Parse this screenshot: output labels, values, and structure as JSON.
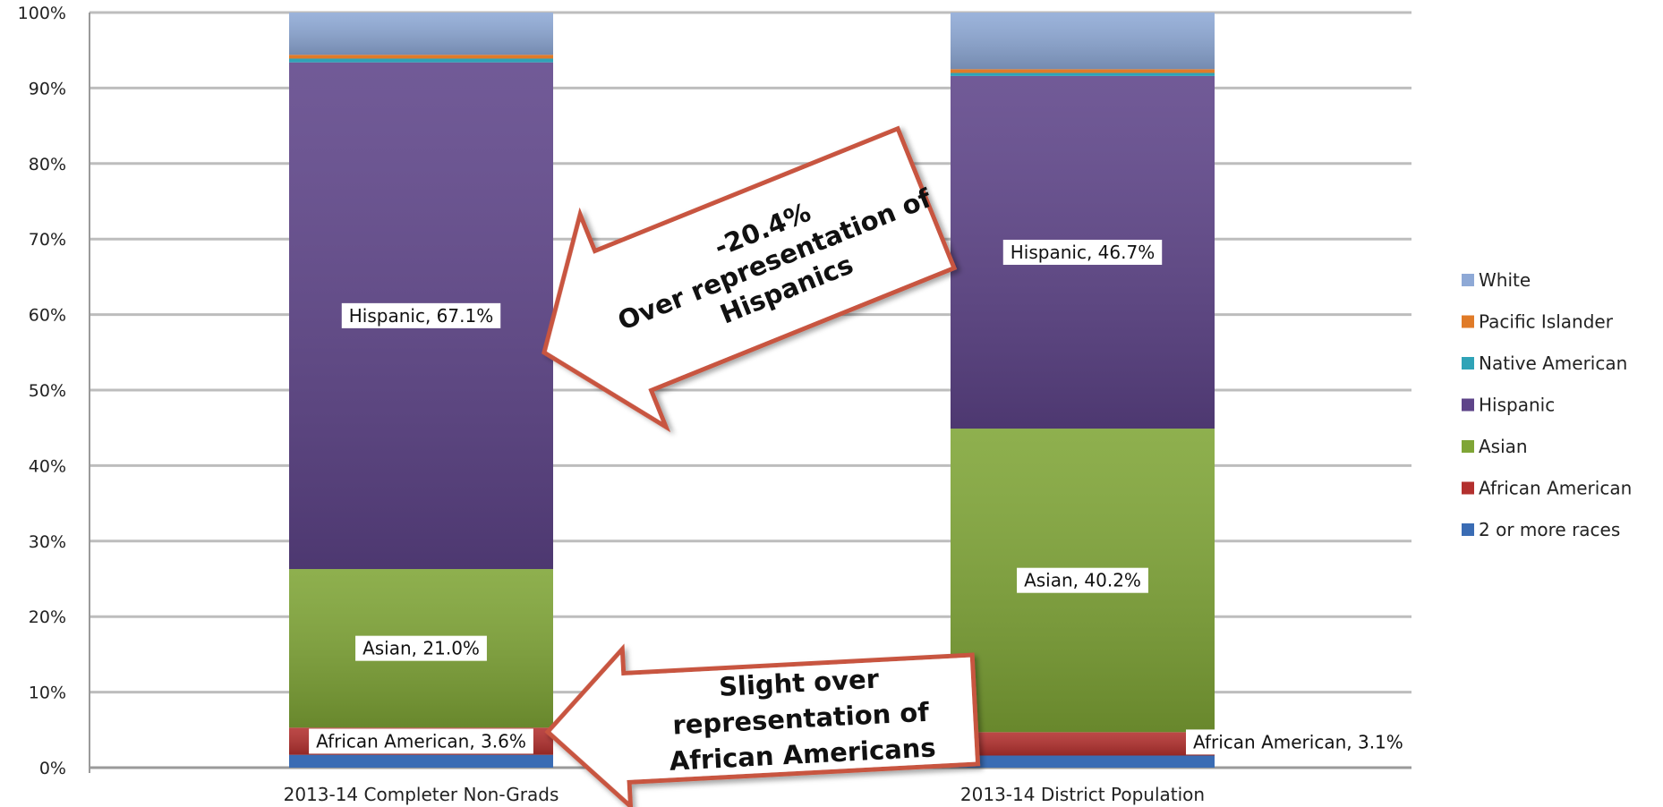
{
  "chart_data": {
    "type": "bar",
    "stacked": true,
    "categories": [
      "2013-14 Completer Non-Grads",
      "2013-14 District Population"
    ],
    "yticks": [
      "0%",
      "10%",
      "20%",
      "30%",
      "40%",
      "50%",
      "60%",
      "70%",
      "80%",
      "90%",
      "100%"
    ],
    "ylim": [
      0,
      100
    ],
    "grid": true,
    "legend_position": "right",
    "series": [
      {
        "name": "2 or more races",
        "color": "#3a6cb4",
        "values": [
          1.7,
          1.6
        ]
      },
      {
        "name": "African American",
        "color": "#b3302e",
        "values": [
          3.6,
          3.1
        ]
      },
      {
        "name": "Asian",
        "color": "#7fa536",
        "values": [
          21.0,
          40.2
        ]
      },
      {
        "name": "Hispanic",
        "color": "#5e4489",
        "values": [
          67.1,
          46.7
        ]
      },
      {
        "name": "Native American",
        "color": "#2fa3b7",
        "values": [
          0.5,
          0.4
        ]
      },
      {
        "name": "Pacific Islander",
        "color": "#e07b28",
        "values": [
          0.5,
          0.5
        ]
      },
      {
        "name": "White",
        "color": "#8ea9d6",
        "values": [
          5.6,
          7.5
        ]
      }
    ],
    "data_labels": [
      {
        "text": "Hispanic, 67.1%",
        "category": 0,
        "series": "Hispanic"
      },
      {
        "text": "Asian, 21.0%",
        "category": 0,
        "series": "Asian"
      },
      {
        "text": "African American, 3.6%",
        "category": 0,
        "series": "African American"
      },
      {
        "text": "Hispanic, 46.7%",
        "category": 1,
        "series": "Hispanic"
      },
      {
        "text": "Asian, 40.2%",
        "category": 1,
        "series": "Asian"
      },
      {
        "text": "African American, 3.1%",
        "category": 1,
        "series": "African American"
      }
    ],
    "annotations": [
      {
        "lines": [
          "-20.4%",
          "Over representation of",
          "Hispanics"
        ]
      },
      {
        "lines": [
          "Slight over",
          "representation of",
          "African Americans"
        ]
      }
    ],
    "legend": [
      "White",
      "Pacific Islander",
      "Native American",
      "Hispanic",
      "Asian",
      "African American",
      "2 or more races"
    ]
  }
}
